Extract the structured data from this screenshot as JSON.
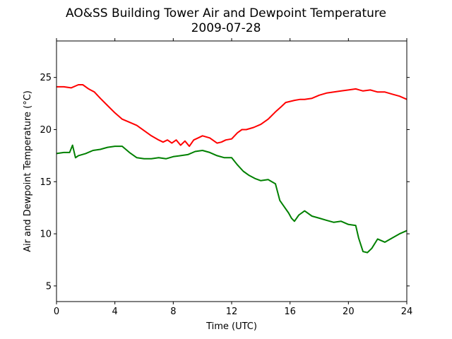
{
  "chart_data": {
    "type": "line",
    "title": "AO&SS Building Tower Air and Dewpoint Temperature",
    "subtitle": "2009-07-28",
    "xlabel": "Time (UTC)",
    "ylabel": "Air and Dewpoint Temperature (°C)",
    "xlim": [
      0,
      24
    ],
    "ylim": [
      3.5,
      28.5
    ],
    "xticks": [
      0,
      4,
      8,
      12,
      16,
      20,
      24
    ],
    "yticks": [
      5,
      10,
      15,
      20,
      25
    ],
    "grid": false,
    "series": [
      {
        "color": "#ff0000",
        "x": [
          0,
          0.5,
          1,
          1.5,
          1.8,
          2.2,
          2.6,
          3,
          3.5,
          4,
          4.5,
          5,
          5.5,
          6,
          6.5,
          7,
          7.3,
          7.6,
          7.9,
          8.2,
          8.5,
          8.8,
          9.1,
          9.4,
          9.7,
          10,
          10.5,
          11,
          11.3,
          11.6,
          12,
          12.4,
          12.7,
          13,
          13.5,
          14,
          14.5,
          15,
          15.4,
          15.7,
          16,
          16.3,
          16.7,
          17,
          17.5,
          18,
          18.5,
          19,
          19.5,
          20,
          20.5,
          21,
          21.5,
          22,
          22.5,
          23,
          23.5,
          24
        ],
        "y": [
          24.1,
          24.1,
          24.0,
          24.3,
          24.3,
          23.9,
          23.6,
          23.0,
          22.3,
          21.6,
          21.0,
          20.7,
          20.4,
          19.9,
          19.4,
          19.0,
          18.8,
          19.0,
          18.7,
          19.0,
          18.5,
          18.9,
          18.4,
          19.0,
          19.2,
          19.4,
          19.2,
          18.7,
          18.8,
          19.0,
          19.1,
          19.7,
          20.0,
          20.0,
          20.2,
          20.5,
          21.0,
          21.7,
          22.2,
          22.6,
          22.7,
          22.8,
          22.9,
          22.9,
          23.0,
          23.3,
          23.5,
          23.6,
          23.7,
          23.8,
          23.9,
          23.7,
          23.8,
          23.6,
          23.6,
          23.4,
          23.2,
          22.9
        ]
      },
      {
        "color": "#008000",
        "x": [
          0,
          0.5,
          0.9,
          1.1,
          1.3,
          1.5,
          2,
          2.5,
          3,
          3.5,
          4,
          4.5,
          5,
          5.5,
          6,
          6.5,
          7,
          7.5,
          8,
          8.5,
          9,
          9.5,
          10,
          10.5,
          11,
          11.5,
          12,
          12.4,
          12.8,
          13.2,
          13.6,
          14,
          14.5,
          15,
          15.3,
          15.6,
          15.9,
          16.1,
          16.3,
          16.6,
          17,
          17.5,
          18,
          18.5,
          19,
          19.5,
          20,
          20.5,
          20.7,
          21,
          21.3,
          21.6,
          22,
          22.5,
          23,
          23.5,
          24
        ],
        "y": [
          17.7,
          17.8,
          17.8,
          18.5,
          17.3,
          17.5,
          17.7,
          18.0,
          18.1,
          18.3,
          18.4,
          18.4,
          17.8,
          17.3,
          17.2,
          17.2,
          17.3,
          17.2,
          17.4,
          17.5,
          17.6,
          17.9,
          18.0,
          17.8,
          17.5,
          17.3,
          17.3,
          16.6,
          16.0,
          15.6,
          15.3,
          15.1,
          15.2,
          14.8,
          13.2,
          12.6,
          12.0,
          11.5,
          11.2,
          11.8,
          12.2,
          11.7,
          11.5,
          11.3,
          11.1,
          11.2,
          10.9,
          10.8,
          9.6,
          8.3,
          8.2,
          8.6,
          9.5,
          9.2,
          9.6,
          10.0,
          10.3
        ]
      }
    ]
  }
}
